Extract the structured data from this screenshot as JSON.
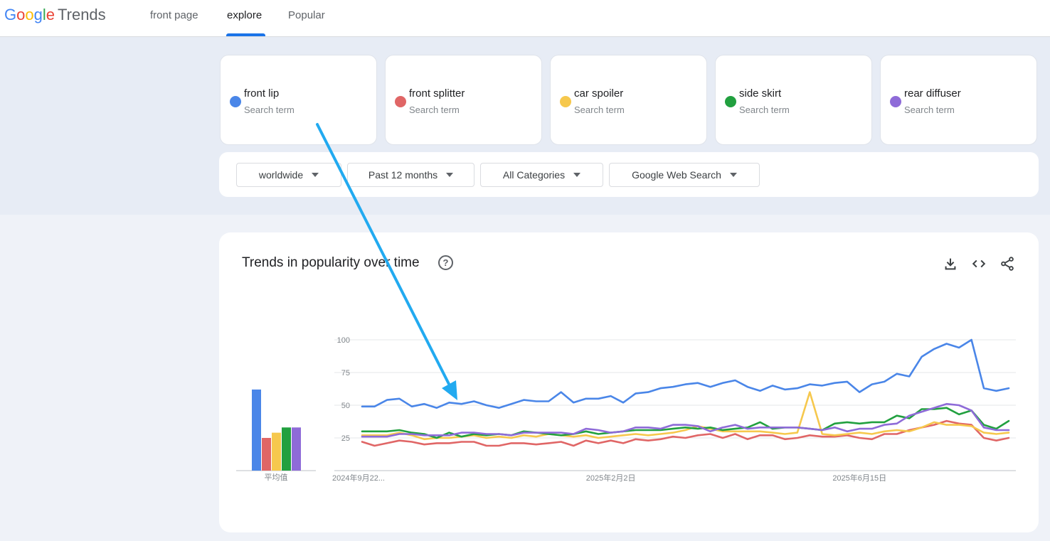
{
  "header": {
    "logo_google": [
      "G",
      "o",
      "o",
      "g",
      "l",
      "e"
    ],
    "logo_trends": "Trends",
    "nav": [
      {
        "label": "front page",
        "active": false
      },
      {
        "label": "explore",
        "active": true
      },
      {
        "label": "Popular",
        "active": false
      }
    ]
  },
  "terms": [
    {
      "name": "front lip",
      "sub": "Search term",
      "color": "#4a86e8"
    },
    {
      "name": "front splitter",
      "sub": "Search term",
      "color": "#e06666"
    },
    {
      "name": "car spoiler",
      "sub": "Search term",
      "color": "#f6c84d"
    },
    {
      "name": "side skirt",
      "sub": "Search term",
      "color": "#21a03f"
    },
    {
      "name": "rear diffuser",
      "sub": "Search term",
      "color": "#8e6bd8"
    }
  ],
  "filters": {
    "region": "worldwide",
    "time": "Past 12 months",
    "category": "All Categories",
    "property": "Google Web Search"
  },
  "chart_card": {
    "title": "Trends in popularity over time",
    "icons": [
      "help-icon",
      "download-icon",
      "embed-icon",
      "share-icon"
    ]
  },
  "chart_data": {
    "type": "line",
    "ylim": [
      0,
      100
    ],
    "y_ticks": [
      25,
      50,
      75,
      100
    ],
    "x_tick_labels": [
      "2024年9月22...",
      "2025年2月2日",
      "2025年6月15日"
    ],
    "x_tick_positions": [
      0,
      20,
      40
    ],
    "grid": true,
    "averages_label": "平均值",
    "averages": [
      62,
      25,
      29,
      33,
      33
    ],
    "series": [
      {
        "name": "front lip",
        "color": "#4a86e8",
        "values": [
          49,
          49,
          54,
          55,
          49,
          51,
          48,
          52,
          51,
          53,
          50,
          48,
          51,
          54,
          53,
          53,
          60,
          52,
          55,
          55,
          57,
          52,
          59,
          60,
          63,
          64,
          66,
          67,
          64,
          67,
          69,
          64,
          61,
          65,
          62,
          63,
          66,
          65,
          67,
          68,
          60,
          66,
          68,
          74,
          72,
          87,
          93,
          97,
          94,
          100,
          63,
          61,
          63
        ]
      },
      {
        "name": "front splitter",
        "color": "#e06666",
        "values": [
          22,
          19,
          21,
          23,
          22,
          20,
          21,
          21,
          22,
          22,
          19,
          19,
          21,
          21,
          20,
          21,
          22,
          19,
          23,
          21,
          23,
          21,
          24,
          23,
          24,
          26,
          25,
          27,
          28,
          25,
          28,
          24,
          27,
          27,
          24,
          25,
          27,
          26,
          26,
          27,
          25,
          24,
          28,
          28,
          31,
          33,
          35,
          38,
          36,
          35,
          25,
          23,
          25
        ]
      },
      {
        "name": "car spoiler",
        "color": "#f6c84d",
        "values": [
          27,
          27,
          27,
          29,
          27,
          24,
          25,
          25,
          26,
          27,
          25,
          26,
          25,
          27,
          26,
          28,
          27,
          26,
          27,
          25,
          26,
          27,
          28,
          27,
          28,
          29,
          31,
          34,
          32,
          30,
          30,
          30,
          30,
          29,
          28,
          29,
          60,
          28,
          27,
          28,
          29,
          28,
          30,
          31,
          30,
          33,
          37,
          35,
          35,
          34,
          29,
          28,
          29
        ]
      },
      {
        "name": "side skirt",
        "color": "#21a03f",
        "values": [
          30,
          30,
          30,
          31,
          29,
          28,
          25,
          29,
          26,
          28,
          27,
          28,
          27,
          30,
          29,
          28,
          27,
          28,
          30,
          28,
          29,
          30,
          31,
          31,
          31,
          32,
          33,
          32,
          33,
          31,
          32,
          33,
          37,
          32,
          33,
          33,
          32,
          31,
          36,
          37,
          36,
          37,
          37,
          42,
          40,
          47,
          47,
          48,
          43,
          46,
          35,
          32,
          38
        ]
      },
      {
        "name": "rear diffuser",
        "color": "#8e6bd8",
        "values": [
          26,
          26,
          26,
          28,
          28,
          27,
          27,
          27,
          29,
          29,
          28,
          28,
          27,
          29,
          29,
          29,
          29,
          28,
          32,
          31,
          29,
          30,
          33,
          33,
          32,
          35,
          35,
          34,
          30,
          33,
          35,
          32,
          33,
          33,
          33,
          33,
          32,
          31,
          33,
          30,
          32,
          32,
          35,
          36,
          42,
          45,
          48,
          51,
          50,
          46,
          33,
          31,
          31
        ]
      }
    ]
  }
}
